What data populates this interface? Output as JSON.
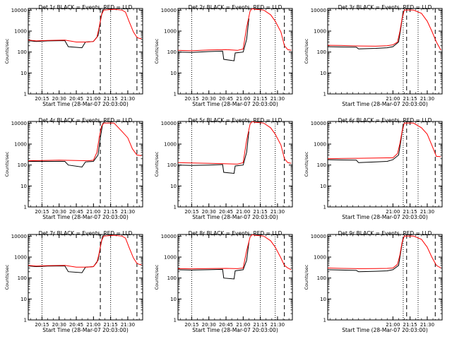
{
  "figure": {
    "title_template": "Det {det}r BLACK = Events, RED = LLD",
    "xlabel": "Start Time (28-Mar-07 20:03:00)",
    "ylabel": "Counts/sec",
    "y_ticks": [
      "1",
      "10",
      "100",
      "1000",
      "10000"
    ],
    "ylim": [
      1,
      12000
    ],
    "y_scale": "log",
    "colors": {
      "events": "#000000",
      "lld": "#ff0000",
      "axes": "#000000"
    }
  },
  "chart_data": [
    {
      "type": "line",
      "detector": 1,
      "title": "Det 1r BLACK = Events, RED = LLD",
      "x_ticks_labels": [
        "20:15",
        "20:30",
        "20:45",
        "21:00",
        "21:15",
        "21:30"
      ],
      "dotted_x": [
        "20:15",
        "21:15"
      ],
      "dashed_x": [
        "21:06",
        "21:38"
      ],
      "series": [
        {
          "name": "BLACK = Events",
          "x": [
            "20:03",
            "20:10",
            "20:20",
            "20:35",
            "20:38",
            "20:50",
            "20:53",
            "21:00",
            "21:04",
            "21:06",
            "21:08",
            "21:09"
          ],
          "values": [
            350,
            320,
            340,
            350,
            180,
            160,
            300,
            320,
            600,
            3000,
            10000,
            11000
          ]
        },
        {
          "name": "RED = LLD",
          "x": [
            "20:03",
            "20:10",
            "20:20",
            "20:35",
            "20:45",
            "20:55",
            "21:00",
            "21:03",
            "21:05",
            "21:07",
            "21:09",
            "21:18",
            "21:25",
            "21:28",
            "21:31",
            "21:35",
            "21:38",
            "21:40",
            "21:42"
          ],
          "values": [
            370,
            340,
            360,
            370,
            300,
            300,
            320,
            500,
            1500,
            6000,
            10000,
            11000,
            10000,
            8000,
            3000,
            900,
            500,
            450,
            430
          ]
        }
      ]
    },
    {
      "type": "line",
      "detector": 2,
      "title": "Det 2r BLACK = Events, RED = LLD",
      "x_ticks_labels": [
        "20:15",
        "20:30",
        "20:45",
        "21:00",
        "21:15",
        "21:30"
      ],
      "dotted_x": [
        "20:15",
        "21:15",
        "21:28"
      ],
      "dashed_x": [
        "21:36"
      ],
      "series": [
        {
          "name": "BLACK = Events",
          "x": [
            "20:03",
            "20:15",
            "20:30",
            "20:42",
            "20:43",
            "20:52",
            "20:53",
            "21:00",
            "21:03",
            "21:05"
          ],
          "values": [
            100,
            95,
            105,
            110,
            45,
            38,
            90,
            100,
            400,
            4000
          ]
        },
        {
          "name": "RED = LLD",
          "x": [
            "20:03",
            "20:15",
            "20:30",
            "20:45",
            "20:55",
            "21:00",
            "21:03",
            "21:06",
            "21:08",
            "21:10",
            "21:18",
            "21:24",
            "21:28",
            "21:33",
            "21:36",
            "21:39",
            "21:42"
          ],
          "values": [
            120,
            115,
            125,
            130,
            120,
            140,
            1500,
            9000,
            12000,
            11000,
            10000,
            6000,
            3000,
            900,
            200,
            130,
            120
          ]
        }
      ]
    },
    {
      "type": "line",
      "detector": 3,
      "title": "Det 3r BLACK = Events, RED = LLD",
      "x_ticks_labels": [
        "21:00",
        "21:15",
        "21:30"
      ],
      "dotted_x": [
        "21:09",
        "21:22"
      ],
      "dashed_x": [
        "21:12",
        "21:37"
      ],
      "series": [
        {
          "name": "BLACK = Events",
          "x": [
            "20:03",
            "20:15",
            "20:28",
            "20:30",
            "20:45",
            "20:55",
            "21:00",
            "21:05",
            "21:07",
            "21:09"
          ],
          "values": [
            180,
            175,
            170,
            140,
            150,
            160,
            180,
            300,
            1500,
            9000
          ]
        },
        {
          "name": "RED = LLD",
          "x": [
            "20:03",
            "20:15",
            "20:30",
            "20:45",
            "20:55",
            "21:00",
            "21:04",
            "21:06",
            "21:08",
            "21:10",
            "21:18",
            "21:25",
            "21:30",
            "21:34",
            "21:38",
            "21:42"
          ],
          "values": [
            210,
            205,
            195,
            190,
            200,
            220,
            300,
            900,
            4000,
            10000,
            10000,
            7000,
            3000,
            1000,
            300,
            120
          ]
        }
      ]
    },
    {
      "type": "line",
      "detector": 4,
      "title": "Det 4r BLACK = Events, RED = LLD",
      "x_ticks_labels": [
        "20:15",
        "20:30",
        "20:45",
        "21:00",
        "21:15",
        "21:30"
      ],
      "dotted_x": [
        "20:15",
        "21:15"
      ],
      "dashed_x": [
        "21:06",
        "21:38"
      ],
      "series": [
        {
          "name": "BLACK = Events",
          "x": [
            "20:03",
            "20:20",
            "20:35",
            "20:38",
            "20:50",
            "20:53",
            "21:00",
            "21:04",
            "21:06",
            "21:08",
            "21:09"
          ],
          "values": [
            150,
            150,
            150,
            100,
            80,
            140,
            150,
            300,
            2000,
            9000,
            11000
          ]
        },
        {
          "name": "RED = LLD",
          "x": [
            "20:03",
            "20:15",
            "20:30",
            "20:45",
            "20:55",
            "21:00",
            "21:03",
            "21:05",
            "21:07",
            "21:09",
            "21:18",
            "21:25",
            "21:30",
            "21:34",
            "21:38",
            "21:42"
          ],
          "values": [
            160,
            165,
            170,
            165,
            160,
            170,
            400,
            2000,
            7000,
            10000,
            10000,
            4000,
            2000,
            600,
            300,
            280
          ]
        }
      ]
    },
    {
      "type": "line",
      "detector": 5,
      "title": "Det 5r BLACK = Events, RED = LLD",
      "x_ticks_labels": [
        "20:15",
        "20:30",
        "20:45",
        "21:00",
        "21:15",
        "21:30"
      ],
      "dotted_x": [
        "20:15",
        "21:15",
        "21:28"
      ],
      "dashed_x": [
        "21:36"
      ],
      "series": [
        {
          "name": "BLACK = Events",
          "x": [
            "20:03",
            "20:15",
            "20:30",
            "20:42",
            "20:43",
            "20:52",
            "20:53",
            "21:00",
            "21:03",
            "21:05"
          ],
          "values": [
            100,
            95,
            100,
            105,
            45,
            40,
            90,
            100,
            400,
            4000
          ]
        },
        {
          "name": "RED = LLD",
          "x": [
            "20:03",
            "20:15",
            "20:30",
            "20:45",
            "20:55",
            "21:00",
            "21:03",
            "21:06",
            "21:08",
            "21:10",
            "21:18",
            "21:24",
            "21:28",
            "21:33",
            "21:36",
            "21:39",
            "21:42"
          ],
          "values": [
            130,
            125,
            120,
            115,
            110,
            130,
            1500,
            9000,
            12000,
            11000,
            10000,
            6000,
            3000,
            900,
            200,
            130,
            120
          ]
        }
      ]
    },
    {
      "type": "line",
      "detector": 6,
      "title": "Det 6r BLACK = Events, RED = LLD",
      "x_ticks_labels": [
        "21:00",
        "21:15",
        "21:30"
      ],
      "dotted_x": [
        "21:09",
        "21:22"
      ],
      "dashed_x": [
        "21:12",
        "21:37"
      ],
      "series": [
        {
          "name": "BLACK = Events",
          "x": [
            "20:03",
            "20:15",
            "20:28",
            "20:30",
            "20:45",
            "20:55",
            "21:00",
            "21:05",
            "21:07",
            "21:09"
          ],
          "values": [
            180,
            175,
            170,
            130,
            140,
            150,
            180,
            300,
            1500,
            9000
          ]
        },
        {
          "name": "RED = LLD",
          "x": [
            "20:03",
            "20:15",
            "20:30",
            "20:45",
            "20:55",
            "21:00",
            "21:04",
            "21:06",
            "21:08",
            "21:10",
            "21:18",
            "21:25",
            "21:30",
            "21:34",
            "21:38",
            "21:42"
          ],
          "values": [
            200,
            205,
            210,
            215,
            220,
            220,
            350,
            1000,
            4000,
            10000,
            10000,
            6000,
            3000,
            900,
            260,
            250
          ]
        }
      ]
    },
    {
      "type": "line",
      "detector": 7,
      "title": "Det 7r BLACK = Events, RED = LLD",
      "x_ticks_labels": [
        "20:15",
        "20:30",
        "20:45",
        "21:00",
        "21:15",
        "21:30"
      ],
      "dotted_x": [
        "20:15",
        "21:15"
      ],
      "dashed_x": [
        "21:06",
        "21:38"
      ],
      "series": [
        {
          "name": "BLACK = Events",
          "x": [
            "20:03",
            "20:10",
            "20:20",
            "20:35",
            "20:38",
            "20:50",
            "20:53",
            "21:00",
            "21:04",
            "21:06",
            "21:08",
            "21:09"
          ],
          "values": [
            380,
            350,
            370,
            380,
            200,
            180,
            330,
            350,
            700,
            3000,
            10000,
            11000
          ]
        },
        {
          "name": "RED = LLD",
          "x": [
            "20:03",
            "20:10",
            "20:20",
            "20:35",
            "20:45",
            "20:55",
            "21:00",
            "21:03",
            "21:05",
            "21:07",
            "21:09",
            "21:18",
            "21:25",
            "21:28",
            "21:31",
            "21:35",
            "21:38",
            "21:40",
            "21:42"
          ],
          "values": [
            400,
            370,
            390,
            400,
            330,
            330,
            350,
            550,
            1500,
            6000,
            10000,
            11000,
            10000,
            8000,
            3000,
            900,
            500,
            450,
            430
          ]
        }
      ]
    },
    {
      "type": "line",
      "detector": 8,
      "title": "Det 8r BLACK = Events, RED = LLD",
      "x_ticks_labels": [
        "20:15",
        "20:30",
        "20:45",
        "21:00",
        "21:15",
        "21:30"
      ],
      "dotted_x": [
        "20:15",
        "21:15",
        "21:28"
      ],
      "dashed_x": [
        "21:36"
      ],
      "series": [
        {
          "name": "BLACK = Events",
          "x": [
            "20:03",
            "20:15",
            "20:30",
            "20:42",
            "20:43",
            "20:52",
            "20:53",
            "21:00",
            "21:03",
            "21:05"
          ],
          "values": [
            250,
            240,
            250,
            260,
            100,
            90,
            220,
            250,
            700,
            5000
          ]
        },
        {
          "name": "RED = LLD",
          "x": [
            "20:03",
            "20:15",
            "20:30",
            "20:45",
            "20:55",
            "21:00",
            "21:03",
            "21:06",
            "21:08",
            "21:10",
            "21:18",
            "21:24",
            "21:28",
            "21:33",
            "21:36",
            "21:39",
            "21:42"
          ],
          "values": [
            280,
            275,
            285,
            290,
            280,
            300,
            2000,
            9000,
            12000,
            11000,
            10000,
            6000,
            3000,
            900,
            400,
            300,
            250
          ]
        }
      ]
    },
    {
      "type": "line",
      "detector": 9,
      "title": "Det 9r BLACK = Events, RED = LLD",
      "x_ticks_labels": [
        "21:00",
        "21:15",
        "21:30"
      ],
      "dotted_x": [
        "21:09",
        "21:22"
      ],
      "dashed_x": [
        "21:12",
        "21:37"
      ],
      "series": [
        {
          "name": "BLACK = Events",
          "x": [
            "20:03",
            "20:15",
            "20:28",
            "20:30",
            "20:45",
            "20:55",
            "21:00",
            "21:05",
            "21:07",
            "21:09"
          ],
          "values": [
            250,
            240,
            230,
            200,
            210,
            220,
            250,
            400,
            2000,
            9000
          ]
        },
        {
          "name": "RED = LLD",
          "x": [
            "20:03",
            "20:15",
            "20:30",
            "20:45",
            "20:55",
            "21:00",
            "21:04",
            "21:06",
            "21:08",
            "21:10",
            "21:18",
            "21:25",
            "21:30",
            "21:34",
            "21:38",
            "21:42"
          ],
          "values": [
            300,
            290,
            280,
            285,
            290,
            300,
            450,
            1200,
            5000,
            10000,
            10000,
            7000,
            3000,
            1000,
            400,
            300
          ]
        }
      ]
    }
  ]
}
